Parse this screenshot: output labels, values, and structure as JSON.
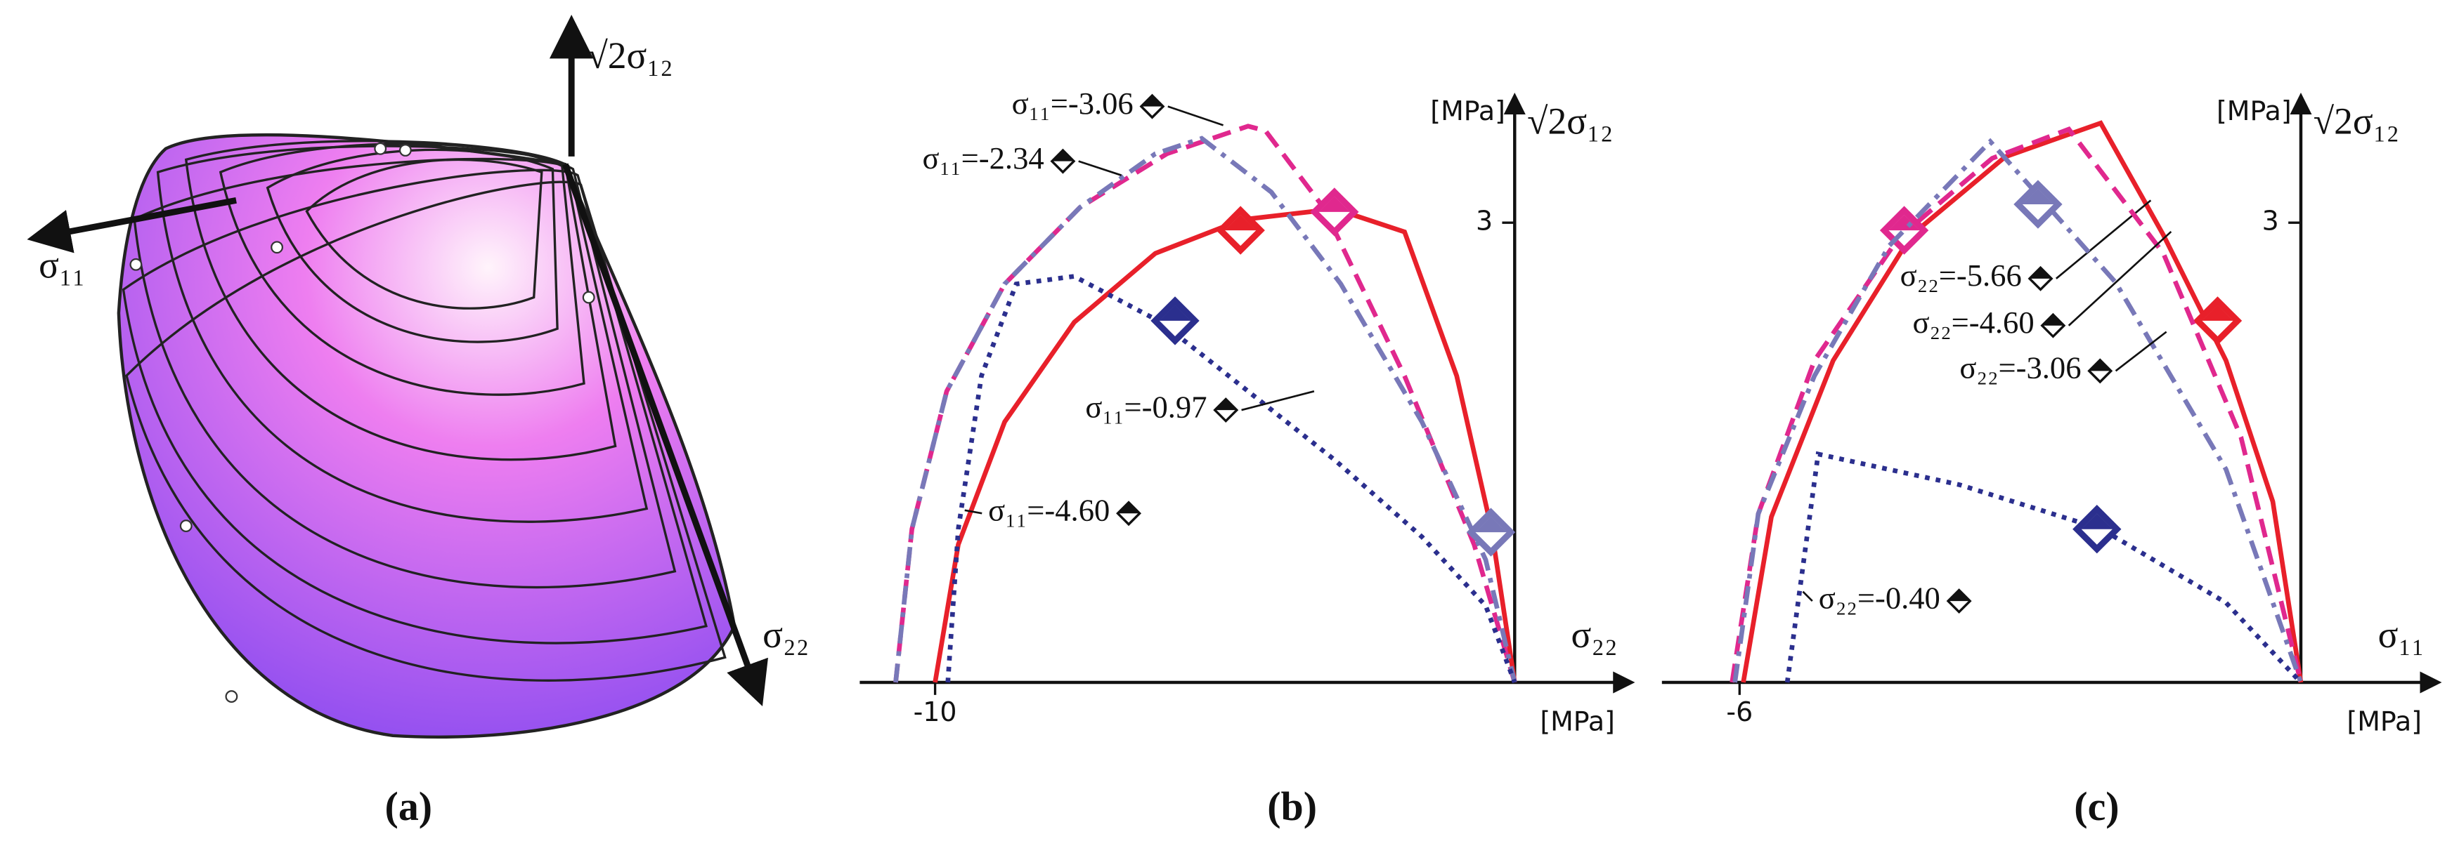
{
  "panel_a": {
    "x_label": "σ₁₁",
    "y_label": "√2σ₁₂",
    "z_label": "σ₂₂",
    "panel_label": "(a)"
  },
  "chart_data": [
    {
      "type": "line",
      "panel_label": "(b)",
      "x_label": "σ₂₂",
      "y_label": "√2σ₁₂",
      "x_unit": "[MPa]",
      "y_unit": "[MPa]",
      "xlim": [
        -11.3,
        2.0
      ],
      "ylim": [
        0,
        3.82
      ],
      "xticks": [
        -10
      ],
      "yticks": [
        3
      ],
      "series": [
        {
          "name": "σ₁₁=-4.60",
          "color": "#e8202a",
          "style": "solid",
          "x": [
            -10,
            -9.6,
            -8.8,
            -7.6,
            -6.2,
            -4.7,
            -3.1,
            -1.9,
            -1.0,
            -0.4,
            0
          ],
          "values": [
            0,
            0.9,
            1.7,
            2.35,
            2.8,
            3.02,
            3.09,
            2.94,
            2.0,
            1.0,
            0
          ],
          "marker": {
            "x": -4.73,
            "y": 2.95
          }
        },
        {
          "name": "σ₁₁=-3.06",
          "color": "#e0288e",
          "style": "dashed",
          "x": [
            -10.68,
            -10.4,
            -9.8,
            -8.8,
            -7.5,
            -6.0,
            -4.6,
            -4.3,
            -3.3,
            -1.9,
            -0.7,
            0
          ],
          "values": [
            0,
            1.0,
            1.9,
            2.6,
            3.1,
            3.45,
            3.63,
            3.6,
            3.1,
            2.0,
            0.9,
            0
          ],
          "marker": {
            "x": -3.11,
            "y": 3.07
          }
        },
        {
          "name": "σ₁₁=-2.34",
          "color": "#7878b8",
          "style": "dashdot",
          "x": [
            -10.68,
            -10.4,
            -9.8,
            -8.8,
            -7.5,
            -6.2,
            -5.4,
            -4.2,
            -3.0,
            -1.6,
            -0.5,
            0
          ],
          "values": [
            0,
            1.0,
            1.9,
            2.6,
            3.1,
            3.45,
            3.55,
            3.2,
            2.6,
            1.7,
            0.8,
            0
          ],
          "marker": {
            "x": -0.41,
            "y": 0.98
          }
        },
        {
          "name": "σ₁₁=-0.97",
          "color": "#2b2f8e",
          "style": "dotted",
          "x": [
            -9.78,
            -9.6,
            -9.2,
            -8.6,
            -7.6,
            -6.1,
            -4.6,
            -3.1,
            -1.6,
            -0.5,
            0
          ],
          "values": [
            0,
            1.0,
            2.0,
            2.6,
            2.65,
            2.35,
            1.9,
            1.45,
            0.95,
            0.5,
            0
          ],
          "marker": {
            "x": -5.86,
            "y": 2.36
          }
        }
      ]
    },
    {
      "type": "line",
      "panel_label": "(c)",
      "x_label": "σ₁₁",
      "y_label": "√2σ₁₂",
      "x_unit": "[MPa]",
      "y_unit": "[MPa]",
      "xlim": [
        -6.83,
        1.46
      ],
      "ylim": [
        0,
        3.82
      ],
      "xticks": [
        -6
      ],
      "yticks": [
        3
      ],
      "series": [
        {
          "name": "σ₂₂=-5.66",
          "color": "#e8202a",
          "style": "solid",
          "x": [
            -5.96,
            -5.66,
            -5.0,
            -4.16,
            -3.16,
            -2.14,
            -1.47,
            -0.8,
            -0.3,
            0
          ],
          "values": [
            0,
            1.08,
            2.1,
            2.92,
            3.43,
            3.65,
            2.92,
            2.1,
            1.18,
            0
          ],
          "marker": {
            "x": -0.89,
            "y": 2.36
          }
        },
        {
          "name": "σ₂₂=-4.60",
          "color": "#e0288e",
          "style": "dashed",
          "x": [
            -6.08,
            -5.8,
            -5.2,
            -4.3,
            -3.3,
            -2.48,
            -1.47,
            -0.64,
            0
          ],
          "values": [
            0,
            1.1,
            2.1,
            2.9,
            3.42,
            3.61,
            2.8,
            1.6,
            0
          ],
          "marker": {
            "x": -4.24,
            "y": 2.95
          }
        },
        {
          "name": "σ₂₂=-3.06",
          "color": "#7878b8",
          "style": "dashdot",
          "x": [
            -6.05,
            -5.8,
            -5.2,
            -4.4,
            -3.32,
            -1.98,
            -0.8,
            0
          ],
          "values": [
            0,
            1.1,
            2.0,
            2.85,
            3.53,
            2.61,
            1.39,
            0
          ],
          "marker": {
            "x": -2.81,
            "y": 3.12
          }
        },
        {
          "name": "σ₂₂=-0.40",
          "color": "#2b2f8e",
          "style": "dotted",
          "x": [
            -5.49,
            -5.16,
            -3.65,
            -2.13,
            -0.8,
            0
          ],
          "values": [
            0,
            1.49,
            1.29,
            1.0,
            0.52,
            0
          ],
          "marker": {
            "x": -2.18,
            "y": 1.0
          }
        }
      ]
    }
  ]
}
